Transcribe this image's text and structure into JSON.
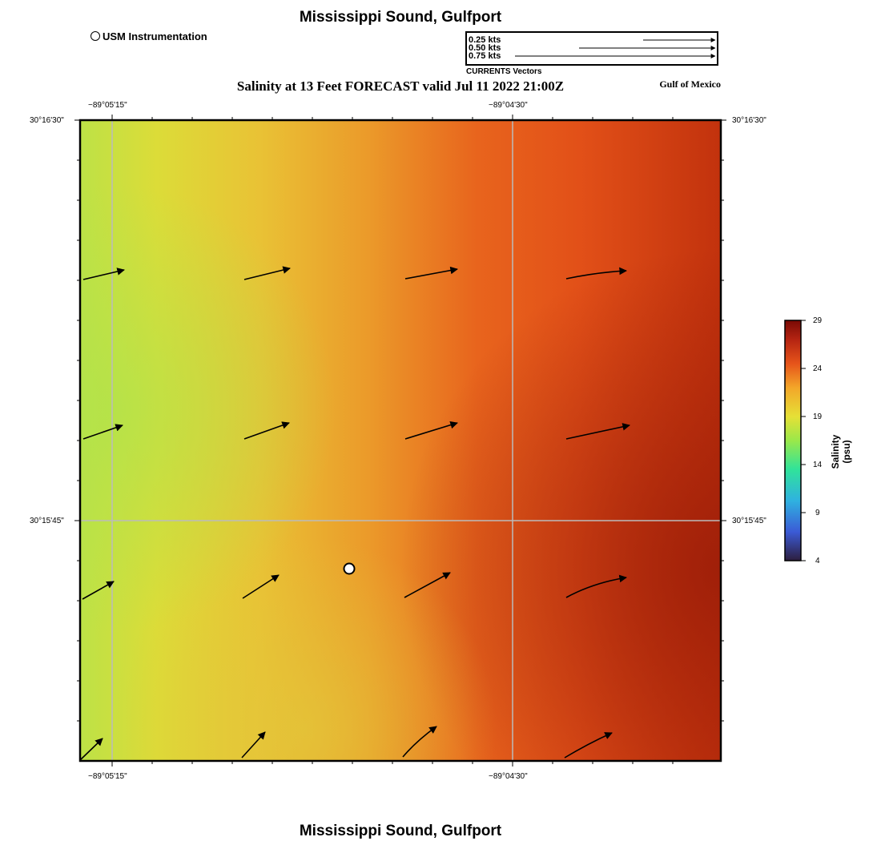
{
  "header": {
    "title": "Mississippi Sound, Gulfport",
    "subtitle": "Salinity at 13 Feet FORECAST valid Jul 11 2022 21:00Z",
    "region_label": "Gulf of Mexico",
    "station_legend": "USM Instrumentation"
  },
  "footer": {
    "title": "Mississippi Sound, Gulfport"
  },
  "vector_legend": {
    "caption": "CURRENTS Vectors",
    "entries": [
      {
        "label": "0.25 kts",
        "speed_kts": 0.25
      },
      {
        "label": "0.50 kts",
        "speed_kts": 0.5
      },
      {
        "label": "0.75 kts",
        "speed_kts": 0.75
      }
    ]
  },
  "axes": {
    "lon_ticks": [
      "−89°05'15\"",
      "−89°04'30\""
    ],
    "lat_ticks": [
      "30°16'30\"",
      "30°15'45\""
    ]
  },
  "colorbar": {
    "title": "Salinity (psu)",
    "ticks": [
      "29",
      "24",
      "19",
      "14",
      "9",
      "4"
    ],
    "colors": [
      "#2d1e3e",
      "#3b5bd6",
      "#2fb2e0",
      "#30e39a",
      "#9ae84a",
      "#e6e036",
      "#f3a629",
      "#e6541a",
      "#b52412",
      "#7a0a05"
    ]
  },
  "station": {
    "name": "USM Instrumentation",
    "color": "#ffffff"
  },
  "colors": {
    "gridline": "#bbbbbb",
    "vector": "#000000"
  }
}
